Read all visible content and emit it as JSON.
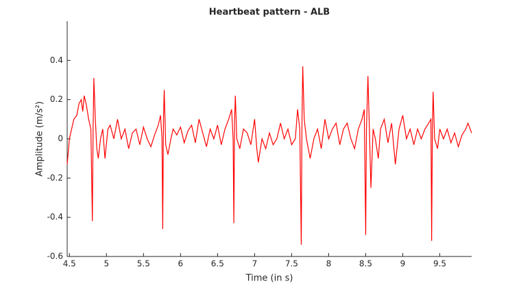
{
  "chart_data": {
    "type": "line",
    "title": "Heartbeat pattern - ALB",
    "x_label": "Time (in s)",
    "y_label": "Amplitude (m/s²)",
    "x": [
      4.47,
      4.5,
      4.53,
      4.56,
      4.6,
      4.63,
      4.66,
      4.68,
      4.7,
      4.73,
      4.76,
      4.79,
      4.81,
      4.82,
      4.83,
      4.85,
      4.87,
      4.89,
      4.92,
      4.95,
      4.98,
      5.02,
      5.05,
      5.1,
      5.15,
      5.2,
      5.25,
      5.3,
      5.35,
      5.4,
      5.45,
      5.5,
      5.55,
      5.6,
      5.65,
      5.7,
      5.73,
      5.75,
      5.76,
      5.77,
      5.78,
      5.8,
      5.83,
      5.87,
      5.9,
      5.95,
      6.0,
      6.05,
      6.1,
      6.15,
      6.2,
      6.25,
      6.3,
      6.35,
      6.4,
      6.45,
      6.5,
      6.55,
      6.6,
      6.65,
      6.69,
      6.71,
      6.72,
      6.73,
      6.74,
      6.76,
      6.8,
      6.85,
      6.9,
      6.95,
      7.0,
      7.03,
      7.05,
      7.1,
      7.15,
      7.2,
      7.25,
      7.3,
      7.35,
      7.4,
      7.45,
      7.5,
      7.55,
      7.58,
      7.61,
      7.63,
      7.64,
      7.65,
      7.67,
      7.7,
      7.75,
      7.8,
      7.85,
      7.9,
      7.95,
      8.0,
      8.05,
      8.1,
      8.15,
      8.2,
      8.25,
      8.3,
      8.35,
      8.4,
      8.45,
      8.48,
      8.5,
      8.51,
      8.53,
      8.55,
      8.57,
      8.6,
      8.63,
      8.67,
      8.7,
      8.75,
      8.8,
      8.85,
      8.9,
      8.95,
      9.0,
      9.05,
      9.1,
      9.15,
      9.2,
      9.25,
      9.3,
      9.35,
      9.38,
      9.39,
      9.4,
      9.41,
      9.43,
      9.47,
      9.5,
      9.55,
      9.6,
      9.65,
      9.7,
      9.75,
      9.8,
      9.85,
      9.88,
      9.91,
      9.93
    ],
    "series": [
      {
        "color": "#ff0000",
        "values": [
          -0.13,
          0.0,
          0.05,
          0.1,
          0.12,
          0.18,
          0.2,
          0.14,
          0.22,
          0.17,
          0.1,
          0.05,
          -0.42,
          0.05,
          0.31,
          0.1,
          -0.05,
          -0.1,
          0.0,
          0.05,
          -0.1,
          0.05,
          0.07,
          0.0,
          0.1,
          0.0,
          0.05,
          -0.05,
          0.03,
          0.05,
          -0.03,
          0.06,
          0.0,
          -0.04,
          0.02,
          0.07,
          0.12,
          0.0,
          -0.46,
          0.1,
          0.25,
          -0.03,
          -0.08,
          0.0,
          0.05,
          0.02,
          0.06,
          -0.02,
          0.04,
          0.07,
          -0.02,
          0.1,
          0.03,
          -0.04,
          0.05,
          0.0,
          0.07,
          -0.03,
          0.05,
          0.1,
          0.15,
          0.0,
          -0.43,
          0.1,
          0.22,
          0.0,
          -0.05,
          0.05,
          0.03,
          -0.03,
          0.1,
          -0.05,
          -0.12,
          0.0,
          -0.05,
          0.03,
          -0.03,
          0.0,
          0.08,
          0.0,
          0.05,
          -0.03,
          0.0,
          0.15,
          0.05,
          -0.54,
          0.1,
          0.37,
          0.1,
          0.0,
          -0.1,
          0.0,
          0.05,
          -0.05,
          0.1,
          0.0,
          0.05,
          0.08,
          -0.03,
          0.05,
          0.08,
          0.0,
          -0.05,
          0.05,
          0.1,
          0.15,
          -0.49,
          0.05,
          0.32,
          0.05,
          -0.25,
          0.05,
          0.0,
          -0.1,
          0.05,
          0.1,
          -0.02,
          0.08,
          -0.13,
          0.05,
          0.12,
          0.0,
          0.05,
          -0.03,
          0.05,
          0.0,
          0.05,
          0.08,
          0.1,
          -0.52,
          0.05,
          0.24,
          0.0,
          -0.05,
          0.05,
          0.0,
          0.05,
          -0.02,
          0.03,
          -0.04,
          0.02,
          0.05,
          0.08,
          0.05,
          0.03
        ]
      }
    ],
    "xlim": [
      4.47,
      9.93
    ],
    "xticks": [
      4.5,
      5,
      5.5,
      6,
      6.5,
      7,
      7.5,
      8,
      8.5,
      9,
      9.5
    ],
    "ylim": [
      -0.6,
      0.6
    ],
    "yticks": [
      -0.6,
      -0.4,
      -0.2,
      0,
      0.2,
      0.4
    ]
  }
}
